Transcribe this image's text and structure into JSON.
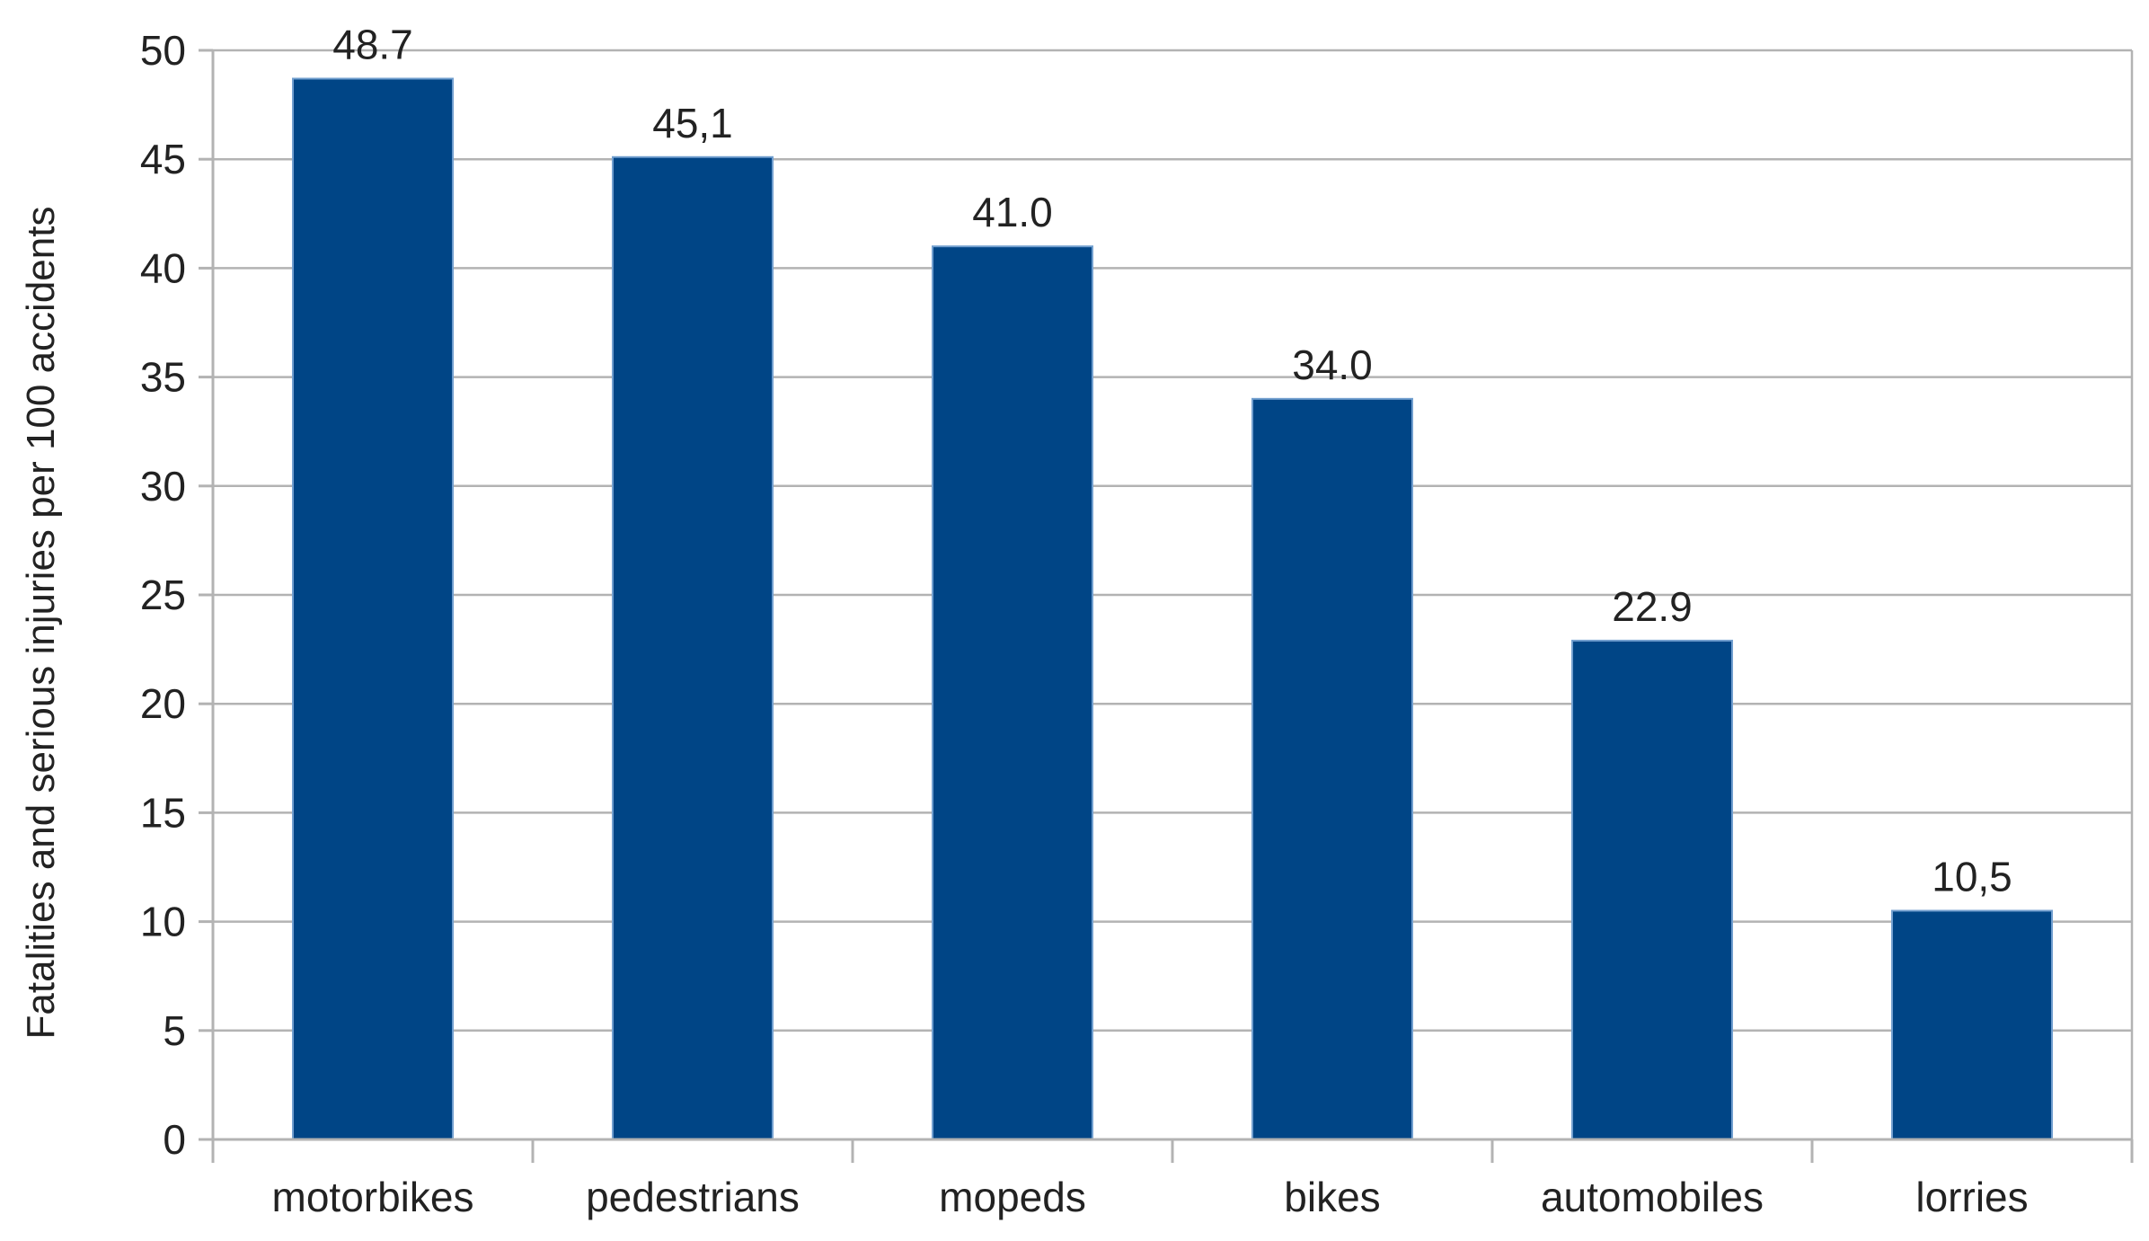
{
  "chart_data": {
    "type": "bar",
    "title": "",
    "xlabel": "",
    "ylabel": "Fatalities and serious injuries per 100 accidents",
    "categories": [
      "motorbikes",
      "pedestrians",
      "mopeds",
      "bikes",
      "automobiles",
      "lorries"
    ],
    "values": [
      48.7,
      45.1,
      41.0,
      34.0,
      22.9,
      10.5
    ],
    "data_labels": [
      "48.7",
      "45,1",
      "41.0",
      "34.0",
      "22.9",
      "10,5"
    ],
    "ylim": [
      0,
      50
    ],
    "yticks": [
      0,
      5,
      10,
      15,
      20,
      25,
      30,
      35,
      40,
      45,
      50
    ],
    "grid": true,
    "legend": "none",
    "bar_color": "#004586",
    "bar_edge_color": "#729fcf"
  }
}
